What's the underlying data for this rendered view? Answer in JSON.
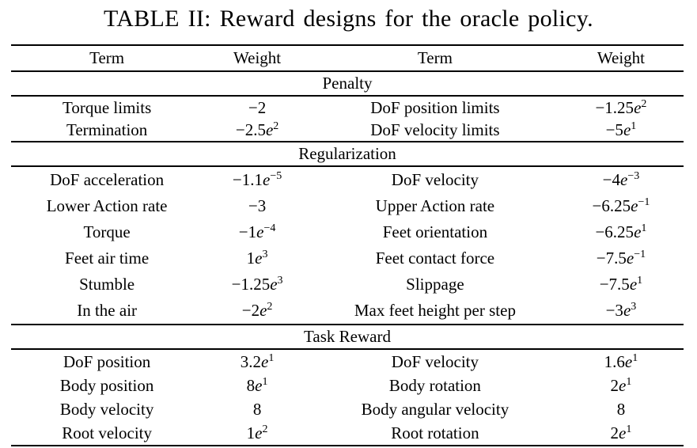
{
  "title": "TABLE II: Reward designs for the oracle policy.",
  "colors": {
    "text": "#000000",
    "rule": "#000000",
    "background": "#ffffff"
  },
  "table": {
    "columns": [
      "Term",
      "Weight",
      "Term",
      "Weight"
    ],
    "sections": [
      {
        "label": "Penalty",
        "rows": [
          {
            "t1": "Torque limits",
            "w1": {
              "m": "−2",
              "e": "",
              "x": ""
            },
            "t2": "DoF position limits",
            "w2": {
              "m": "−1.25",
              "e": "e",
              "x": "2"
            }
          },
          {
            "t1": "Termination",
            "w1": {
              "m": "−2.5",
              "e": "e",
              "x": "2"
            },
            "t2": "DoF velocity limits",
            "w2": {
              "m": "−5",
              "e": "e",
              "x": "1"
            }
          }
        ]
      },
      {
        "label": "Regularization",
        "rows": [
          {
            "t1": "DoF acceleration",
            "w1": {
              "m": "−1.1",
              "e": "e",
              "x": "−5"
            },
            "t2": "DoF velocity",
            "w2": {
              "m": "−4",
              "e": "e",
              "x": "−3"
            }
          },
          {
            "t1": "Lower Action rate",
            "w1": {
              "m": "−3",
              "e": "",
              "x": ""
            },
            "t2": "Upper Action rate",
            "w2": {
              "m": "−6.25",
              "e": "e",
              "x": "−1"
            }
          },
          {
            "t1": "Torque",
            "w1": {
              "m": "−1",
              "e": "e",
              "x": "−4"
            },
            "t2": "Feet orientation",
            "w2": {
              "m": "−6.25",
              "e": "e",
              "x": "1"
            }
          },
          {
            "t1": "Feet air time",
            "w1": {
              "m": "1",
              "e": "e",
              "x": "3"
            },
            "t2": "Feet contact force",
            "w2": {
              "m": "−7.5",
              "e": "e",
              "x": "−1"
            }
          },
          {
            "t1": "Stumble",
            "w1": {
              "m": "−1.25",
              "e": "e",
              "x": "3"
            },
            "t2": "Slippage",
            "w2": {
              "m": "−7.5",
              "e": "e",
              "x": "1"
            }
          },
          {
            "t1": "In the air",
            "w1": {
              "m": "−2",
              "e": "e",
              "x": "2"
            },
            "t2": "Max feet height per step",
            "w2": {
              "m": "−3",
              "e": "e",
              "x": "3"
            }
          }
        ]
      },
      {
        "label": "Task Reward",
        "rows": [
          {
            "t1": "DoF position",
            "w1": {
              "m": "3.2",
              "e": "e",
              "x": "1"
            },
            "t2": "DoF velocity",
            "w2": {
              "m": "1.6",
              "e": "e",
              "x": "1"
            }
          },
          {
            "t1": "Body position",
            "w1": {
              "m": "8",
              "e": "e",
              "x": "1"
            },
            "t2": "Body rotation",
            "w2": {
              "m": "2",
              "e": "e",
              "x": "1"
            }
          },
          {
            "t1": "Body velocity",
            "w1": {
              "m": "8",
              "e": "",
              "x": ""
            },
            "t2": "Body angular velocity",
            "w2": {
              "m": "8",
              "e": "",
              "x": ""
            }
          },
          {
            "t1": "Root velocity",
            "w1": {
              "m": "1",
              "e": "e",
              "x": "2"
            },
            "t2": "Root rotation",
            "w2": {
              "m": "2",
              "e": "e",
              "x": "1"
            }
          }
        ]
      }
    ]
  }
}
